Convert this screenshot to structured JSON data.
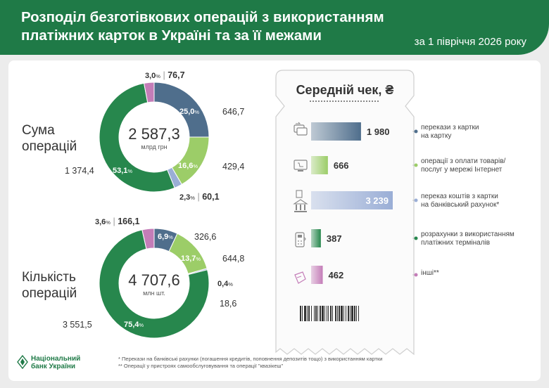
{
  "header": {
    "title_line1": "Розподіл безготівкових операцій з використанням",
    "title_line2": "платіжних карток в Україні та за її межами",
    "period": "за 1 півріччя 2026 року"
  },
  "colors": {
    "header_green": "#1f7a47",
    "p2p_blue": "#4f6e8c",
    "internet_lightgreen": "#9ccd68",
    "bank_account_lightblue": "#9aaed6",
    "terminals_darkgreen": "#27874d",
    "other_pink": "#c47db8"
  },
  "chart_data": [
    {
      "type": "pie",
      "label_line1": "Сума",
      "label_line2": "операцій",
      "total": "2 587,3",
      "unit": "млрд грн",
      "slices": [
        {
          "key": "p2p",
          "value": 646.7,
          "value_label": "646,7",
          "pct": "25,0",
          "color": "#4f6e8c"
        },
        {
          "key": "internet",
          "value": 429.4,
          "value_label": "429,4",
          "pct": "16,6",
          "color": "#9ccd68"
        },
        {
          "key": "bank_account",
          "value": 60.1,
          "value_label": "60,1",
          "pct": "2,3",
          "color": "#9aaed6"
        },
        {
          "key": "terminals",
          "value": 1374.4,
          "value_label": "1 374,4",
          "pct": "53,1",
          "color": "#27874d"
        },
        {
          "key": "other",
          "value": 76.7,
          "value_label": "76,7",
          "pct": "3,0",
          "color": "#c47db8"
        }
      ]
    },
    {
      "type": "pie",
      "label_line1": "Кількість",
      "label_line2": "операцій",
      "total": "4 707,6",
      "unit": "млн шт.",
      "slices": [
        {
          "key": "p2p",
          "value": 326.6,
          "value_label": "326,6",
          "pct": "6,9",
          "color": "#4f6e8c"
        },
        {
          "key": "internet",
          "value": 644.8,
          "value_label": "644,8",
          "pct": "13,7",
          "color": "#9ccd68"
        },
        {
          "key": "bank_account",
          "value": 18.6,
          "value_label": "18,6",
          "pct": "0,4",
          "color": "#9aaed6"
        },
        {
          "key": "terminals",
          "value": 3551.5,
          "value_label": "3 551,5",
          "pct": "75,4",
          "color": "#27874d"
        },
        {
          "key": "other",
          "value": 166.1,
          "value_label": "166,1",
          "pct": "3,6",
          "color": "#c47db8"
        }
      ]
    },
    {
      "type": "bar",
      "title": "Середній чек, ₴",
      "categories": [
        "перекази з картки на картку",
        "операції з оплати товарів/ послуг у мережі Інтернет",
        "переказ коштів з картки на банківський рахунок*",
        "розрахунки з використанням платіжних терміналів",
        "інші**"
      ],
      "values": [
        1980,
        666,
        3239,
        387,
        462
      ],
      "value_labels": [
        "1 980",
        "666",
        "3 239",
        "387",
        "462"
      ],
      "desc_lines": [
        [
          "перекази з картки",
          "на картку"
        ],
        [
          "операції з оплати товарів/",
          "послуг у мережі Інтернет"
        ],
        [
          "переказ коштів з картки",
          "на банківський рахунок*"
        ],
        [
          "розрахунки з використанням",
          "платіжних терміналів"
        ],
        [
          "інші**"
        ]
      ],
      "colors": [
        "#4f6e8c",
        "#9ccd68",
        "#9aaed6",
        "#27874d",
        "#c47db8"
      ],
      "icons": [
        "card-transfer-icon",
        "online-shop-icon",
        "bank-icon",
        "pos-terminal-icon",
        "other-hand-icon"
      ]
    }
  ],
  "footnotes": {
    "note1": "* Перекази на банківські рахунки (погашення кредитів, поповнення депозитів тощо) з використанням картки",
    "note2": "** Операції у пристроях самообслуговування та операції \"квазікеш\""
  },
  "logo": {
    "line1": "Національний",
    "line2": "банк України"
  }
}
